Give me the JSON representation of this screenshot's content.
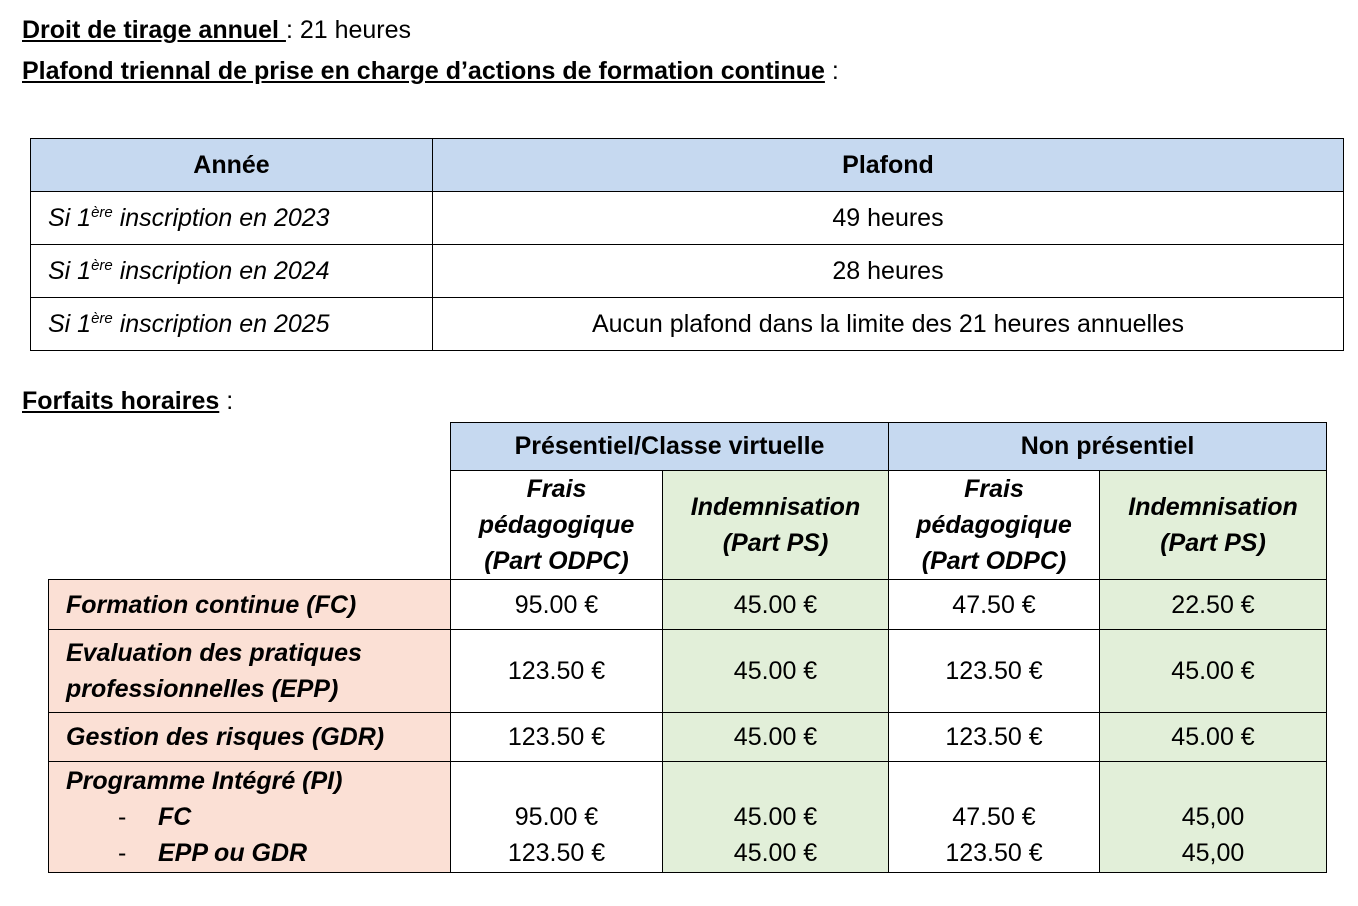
{
  "header": {
    "droit_label": "Droit de tirage annuel ",
    "droit_value": ": 21 heures",
    "plafond_label": "Plafond triennal de prise en charge d’actions de formation continue",
    "plafond_suffix": " :"
  },
  "table1": {
    "columns": [
      "Année",
      "Plafond"
    ],
    "rows": [
      {
        "prefix": "Si 1",
        "sup": "ère",
        "suffix": " inscription en 2023",
        "plafond": "49 heures"
      },
      {
        "prefix": "Si 1",
        "sup": "ère",
        "suffix": " inscription en 2024",
        "plafond": "28 heures"
      },
      {
        "prefix": "Si 1",
        "sup": "ère",
        "suffix": " inscription en 2025",
        "plafond": "Aucun plafond dans la limite des 21 heures annuelles"
      }
    ]
  },
  "forfaits": {
    "title": "Forfaits horaires",
    "suffix": " :",
    "groups": [
      "Présentiel/Classe virtuelle",
      "Non présentiel"
    ],
    "subcolumns": [
      "Frais pédagogique (Part ODPC)",
      "Indemnisation (Part PS)",
      "Frais pédagogique (Part ODPC)",
      "Indemnisation (Part PS)"
    ],
    "rows": [
      {
        "label": "Formation continue (FC)",
        "values": [
          "95.00 €",
          "45.00 €",
          "47.50 €",
          "22.50 €"
        ]
      },
      {
        "label": "Evaluation des pratiques professionnelles (EPP)",
        "values": [
          "123.50 €",
          "45.00 €",
          "123.50 €",
          "45.00 €"
        ]
      },
      {
        "label": "Gestion des risques (GDR)",
        "values": [
          "123.50 €",
          "45.00 €",
          "123.50 €",
          "45.00 €"
        ]
      }
    ],
    "program": {
      "label": "Programme Intégré (PI)",
      "bullet": "-",
      "subrows": [
        {
          "label": "FC",
          "values": [
            "95.00 €",
            "45.00 €",
            "47.50 €",
            "45,00"
          ]
        },
        {
          "label": "EPP ou GDR",
          "values": [
            "123.50 €",
            "45.00 €",
            "123.50 €",
            "45,00"
          ]
        }
      ]
    }
  }
}
